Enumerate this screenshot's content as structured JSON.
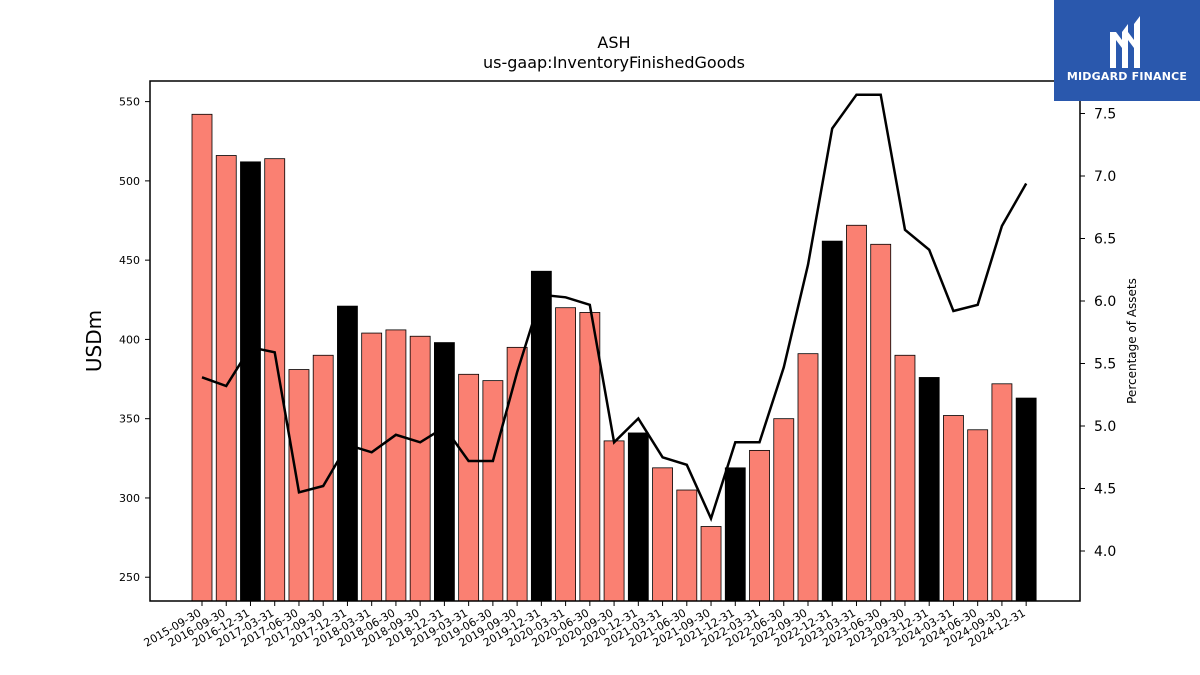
{
  "brand": {
    "name": "MIDGARD FINANCE",
    "bg_color": "#2a58ad"
  },
  "chart_data": {
    "type": "bar",
    "title": "ASH",
    "subtitle": "us-gaap:InventoryFinishedGoods",
    "ylabel": "USDm",
    "y2label": "Percentage of Assets",
    "ylim": [
      235,
      563
    ],
    "y2lim": [
      3.6,
      7.76
    ],
    "yticks": [
      250,
      300,
      350,
      400,
      450,
      500,
      550
    ],
    "y2ticks": [
      4.0,
      4.5,
      5.0,
      5.5,
      6.0,
      6.5,
      7.0,
      7.5
    ],
    "grid": false,
    "colors": {
      "quarter": "#fa8072",
      "year_end": "#000000",
      "line": "#000000"
    },
    "categories": [
      "2015-09-30",
      "2016-09-30",
      "2016-12-31",
      "2017-03-31",
      "2017-06-30",
      "2017-09-30",
      "2017-12-31",
      "2018-03-31",
      "2018-06-30",
      "2018-09-30",
      "2018-12-31",
      "2019-03-31",
      "2019-06-30",
      "2019-09-30",
      "2019-12-31",
      "2020-03-31",
      "2020-06-30",
      "2020-09-30",
      "2020-12-31",
      "2021-03-31",
      "2021-06-30",
      "2021-09-30",
      "2021-12-31",
      "2022-03-31",
      "2022-06-30",
      "2022-09-30",
      "2022-12-31",
      "2023-03-31",
      "2023-06-30",
      "2023-09-30",
      "2023-12-31",
      "2024-03-31",
      "2024-06-30",
      "2024-09-30",
      "2024-12-31"
    ],
    "series": [
      {
        "type": "bar",
        "values": [
          542,
          516,
          512,
          514,
          381,
          390,
          421,
          404,
          406,
          402,
          398,
          378,
          374,
          395,
          443,
          420,
          417,
          336,
          341,
          319,
          305,
          282,
          319,
          330,
          350,
          391,
          462,
          472,
          460,
          390,
          376,
          352,
          343,
          372,
          363
        ],
        "year_end": [
          false,
          false,
          true,
          false,
          false,
          false,
          true,
          false,
          false,
          false,
          true,
          false,
          false,
          false,
          true,
          false,
          false,
          false,
          true,
          false,
          false,
          false,
          true,
          false,
          false,
          false,
          true,
          false,
          false,
          false,
          true,
          false,
          false,
          false,
          true
        ]
      },
      {
        "type": "line",
        "axis": "right",
        "values": [
          5.39,
          5.32,
          5.63,
          5.59,
          4.47,
          4.52,
          4.85,
          4.79,
          4.93,
          4.87,
          4.99,
          4.72,
          4.72,
          5.43,
          6.05,
          6.03,
          5.97,
          4.87,
          5.06,
          4.75,
          4.69,
          4.26,
          4.87,
          4.87,
          5.47,
          6.29,
          7.38,
          7.65,
          7.65,
          6.57,
          6.41,
          5.92,
          5.97,
          6.6,
          6.94
        ]
      }
    ]
  }
}
